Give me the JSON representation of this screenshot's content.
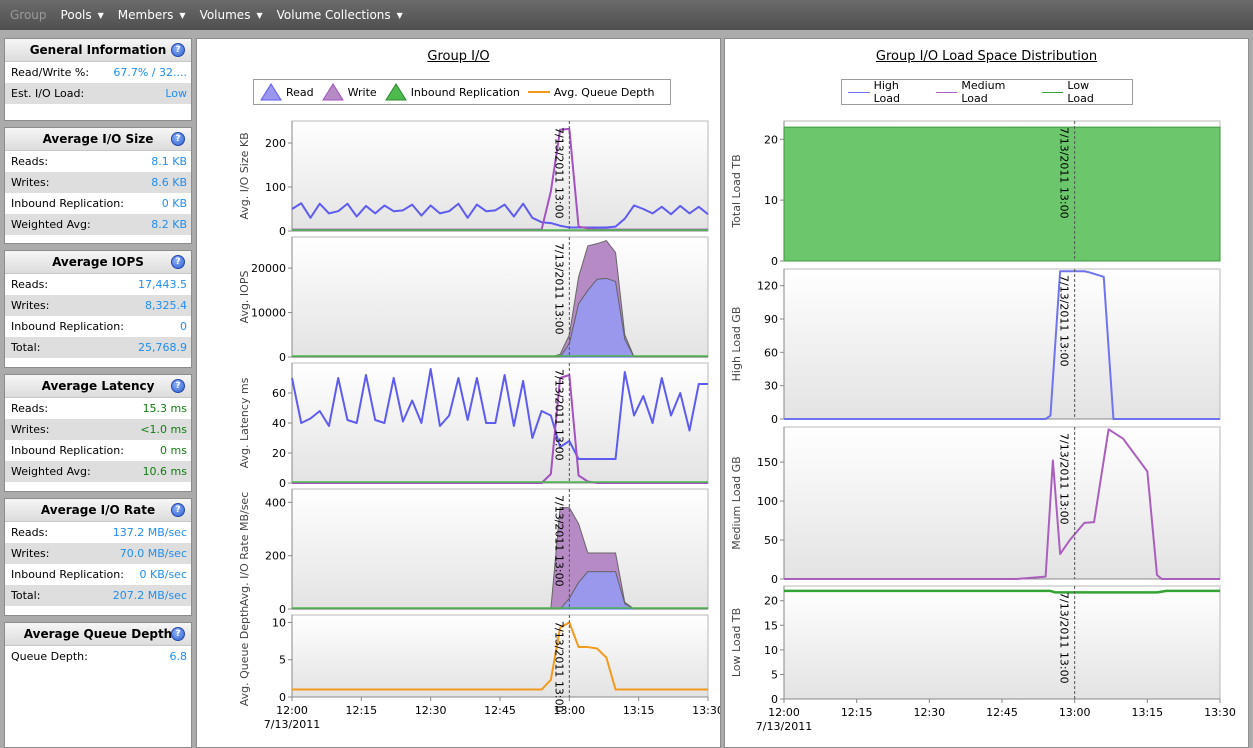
{
  "menu": [
    {
      "label": "Group",
      "disabled": true,
      "caret": false
    },
    {
      "label": "Pools",
      "disabled": false,
      "caret": true
    },
    {
      "label": "Members",
      "disabled": false,
      "caret": true
    },
    {
      "label": "Volumes",
      "disabled": false,
      "caret": true
    },
    {
      "label": "Volume Collections",
      "disabled": false,
      "caret": true
    }
  ],
  "sections": [
    {
      "title": "General Information",
      "rows": [
        {
          "label": "Read/Write %:",
          "value": "67.7% / 32....",
          "color": "blue"
        },
        {
          "label": "Est. I/O Load:",
          "value": "Low",
          "color": "blue"
        }
      ]
    },
    {
      "title": "Average I/O Size",
      "rows": [
        {
          "label": "Reads:",
          "value": "8.1 KB",
          "color": "blue"
        },
        {
          "label": "Writes:",
          "value": "8.6 KB",
          "color": "blue"
        },
        {
          "label": "Inbound Replication:",
          "value": "0 KB",
          "color": "blue"
        },
        {
          "label": "Weighted Avg:",
          "value": "8.2 KB",
          "color": "blue"
        }
      ]
    },
    {
      "title": "Average IOPS",
      "rows": [
        {
          "label": "Reads:",
          "value": "17,443.5",
          "color": "blue"
        },
        {
          "label": "Writes:",
          "value": "8,325.4",
          "color": "blue"
        },
        {
          "label": "Inbound Replication:",
          "value": "0",
          "color": "blue"
        },
        {
          "label": "Total:",
          "value": "25,768.9",
          "color": "blue"
        }
      ]
    },
    {
      "title": "Average Latency",
      "rows": [
        {
          "label": "Reads:",
          "value": "15.3 ms",
          "color": "green"
        },
        {
          "label": "Writes:",
          "value": "<1.0 ms",
          "color": "green"
        },
        {
          "label": "Inbound Replication:",
          "value": "0 ms",
          "color": "green"
        },
        {
          "label": "Weighted Avg:",
          "value": "10.6 ms",
          "color": "green"
        }
      ]
    },
    {
      "title": "Average I/O Rate",
      "rows": [
        {
          "label": "Reads:",
          "value": "137.2 MB/sec",
          "color": "blue"
        },
        {
          "label": "Writes:",
          "value": "70.0 MB/sec",
          "color": "blue"
        },
        {
          "label": "Inbound Replication:",
          "value": "0 KB/sec",
          "color": "blue"
        },
        {
          "label": "Total:",
          "value": "207.2 MB/sec",
          "color": "blue"
        }
      ]
    },
    {
      "title": "Average Queue Depth",
      "rows": [
        {
          "label": "Queue Depth:",
          "value": "6.8",
          "color": "blue"
        }
      ]
    }
  ],
  "colors": {
    "read": "#9a98ec",
    "read_line": "#5e5cf0",
    "write": "#b68ac4",
    "write_line": "#a352c0",
    "inbound": "#4cba4c",
    "queue": "#f39a1e",
    "high": "#7073ee",
    "medium": "#aa5fbe",
    "low": "#33a333",
    "total_fill": "#6cc66c"
  },
  "chart_data": [
    {
      "type": "area",
      "title": "Group I/O",
      "legend": [
        "Read",
        "Write",
        "Inbound Replication",
        "Avg. Queue Depth"
      ],
      "marker_label": "7/13/2011 13:00",
      "x_ticks": [
        "12:00",
        "12:15",
        "12:30",
        "12:45",
        "13:00",
        "13:15",
        "13:30"
      ],
      "x_date_label": "7/13/2011",
      "x_minutes": [
        0,
        2,
        4,
        6,
        8,
        10,
        12,
        14,
        16,
        18,
        20,
        22,
        24,
        26,
        28,
        30,
        32,
        34,
        36,
        38,
        40,
        42,
        44,
        46,
        48,
        50,
        52,
        54,
        56,
        58,
        60,
        62,
        64,
        66,
        68,
        70,
        72,
        74,
        76,
        78,
        80,
        82,
        84,
        86,
        88,
        90
      ],
      "panels": [
        {
          "ylabel": "Avg. I/O Size KB",
          "ylim": [
            0,
            250
          ],
          "yticks": [
            0,
            100,
            200
          ],
          "series": [
            {
              "name": "Read",
              "kind": "line",
              "values": [
                50,
                63,
                30,
                62,
                40,
                45,
                62,
                33,
                57,
                40,
                58,
                45,
                47,
                60,
                35,
                58,
                40,
                45,
                62,
                30,
                60,
                45,
                47,
                60,
                33,
                62,
                30,
                20,
                18,
                12,
                8,
                8,
                8,
                8,
                8,
                10,
                28,
                58,
                50,
                40,
                55,
                38,
                57,
                40,
                55,
                38
              ]
            },
            {
              "name": "Write",
              "kind": "line",
              "values": [
                3,
                3,
                3,
                3,
                3,
                3,
                3,
                3,
                3,
                3,
                3,
                3,
                3,
                3,
                3,
                3,
                3,
                3,
                3,
                3,
                3,
                3,
                3,
                3,
                3,
                3,
                3,
                3,
                90,
                230,
                232,
                10,
                6,
                3,
                3,
                3,
                3,
                3,
                3,
                3,
                3,
                3,
                3,
                3,
                3,
                3
              ]
            }
          ]
        },
        {
          "ylabel": "Avg. IOPS",
          "ylim": [
            0,
            27000
          ],
          "yticks": [
            0,
            10000,
            20000
          ],
          "series": [
            {
              "name": "Read",
              "kind": "area",
              "values": [
                0,
                0,
                0,
                0,
                0,
                0,
                0,
                0,
                0,
                0,
                0,
                0,
                0,
                0,
                0,
                0,
                0,
                0,
                0,
                0,
                0,
                0,
                0,
                0,
                0,
                0,
                0,
                0,
                0,
                0,
                3000,
                12000,
                15000,
                17500,
                17700,
                17000,
                4000,
                0,
                0,
                0,
                0,
                0,
                0,
                0,
                0,
                0
              ]
            },
            {
              "name": "Write",
              "kind": "area_stack",
              "values": [
                0,
                0,
                0,
                0,
                0,
                0,
                0,
                0,
                0,
                0,
                0,
                0,
                0,
                0,
                0,
                0,
                0,
                0,
                0,
                0,
                0,
                0,
                0,
                0,
                0,
                0,
                0,
                0,
                0,
                600,
                2000,
                6000,
                10000,
                8000,
                8500,
                6500,
                1000,
                0,
                0,
                0,
                0,
                0,
                0,
                0,
                0,
                0
              ]
            }
          ]
        },
        {
          "ylabel": "Avg. Latency ms",
          "ylim": [
            0,
            80
          ],
          "yticks": [
            0,
            20,
            40,
            60
          ],
          "series": [
            {
              "name": "Read",
              "kind": "line",
              "values": [
                70,
                40,
                43,
                48,
                38,
                70,
                42,
                40,
                72,
                42,
                40,
                70,
                41,
                55,
                40,
                76,
                38,
                45,
                70,
                42,
                70,
                40,
                40,
                72,
                38,
                68,
                30,
                48,
                45,
                24,
                28,
                16,
                16,
                16,
                16,
                16,
                74,
                45,
                58,
                40,
                70,
                45,
                60,
                35,
                66,
                66
              ]
            },
            {
              "name": "Write",
              "kind": "line",
              "values": [
                0,
                0,
                0,
                0,
                0,
                0,
                0,
                0,
                0,
                0,
                0,
                0,
                0,
                0,
                0,
                0,
                0,
                0,
                0,
                0,
                0,
                0,
                0,
                0,
                0,
                0,
                0,
                0,
                6,
                70,
                72,
                5,
                1,
                0,
                0,
                0,
                0,
                0,
                0,
                0,
                0,
                0,
                0,
                0,
                0,
                0
              ]
            }
          ]
        },
        {
          "ylabel": "Avg. I/O Rate MB/sec",
          "ylim": [
            0,
            450
          ],
          "yticks": [
            0,
            200,
            400
          ],
          "series": [
            {
              "name": "Read",
              "kind": "area",
              "values": [
                0,
                0,
                0,
                0,
                0,
                0,
                0,
                0,
                0,
                0,
                0,
                0,
                0,
                0,
                0,
                0,
                0,
                0,
                0,
                0,
                0,
                0,
                0,
                0,
                0,
                0,
                0,
                0,
                0,
                0,
                40,
                100,
                140,
                140,
                140,
                140,
                20,
                0,
                0,
                0,
                0,
                0,
                0,
                0,
                0,
                0
              ]
            },
            {
              "name": "Write",
              "kind": "area_stack",
              "values": [
                0,
                0,
                0,
                0,
                0,
                0,
                0,
                0,
                0,
                0,
                0,
                0,
                0,
                0,
                0,
                0,
                0,
                0,
                0,
                0,
                0,
                0,
                0,
                0,
                0,
                0,
                0,
                0,
                0,
                380,
                340,
                220,
                70,
                70,
                70,
                70,
                5,
                0,
                0,
                0,
                0,
                0,
                0,
                0,
                0,
                0
              ]
            }
          ]
        },
        {
          "ylabel": "Avg. Queue Depth",
          "ylim": [
            0,
            11
          ],
          "yticks": [
            0,
            5,
            10
          ],
          "series": [
            {
              "name": "Avg. Queue Depth",
              "kind": "line",
              "values": [
                1,
                1,
                1,
                1,
                1,
                1,
                1,
                1,
                1,
                1,
                1,
                1,
                1,
                1,
                1,
                1,
                1,
                1,
                1,
                1,
                1,
                1,
                1,
                1,
                1,
                1,
                1,
                1,
                2.3,
                9.3,
                10,
                6.7,
                6.7,
                6.5,
                5.3,
                1,
                1,
                1,
                1,
                1,
                1,
                1,
                1,
                1,
                1,
                1
              ]
            }
          ]
        }
      ]
    },
    {
      "type": "line",
      "title": "Group I/O Load Space Distribution",
      "legend": [
        "High Load",
        "Medium Load",
        "Low Load"
      ],
      "marker_label": "7/13/2011 13:00",
      "x_ticks": [
        "12:00",
        "12:15",
        "12:30",
        "12:45",
        "13:00",
        "13:15",
        "13:30"
      ],
      "x_date_label": "7/13/2011",
      "panels": [
        {
          "ylabel": "Total Load TB",
          "ylim": [
            0,
            23
          ],
          "yticks": [
            0,
            10,
            20
          ],
          "series": [
            {
              "name": "Total",
              "kind": "area_const",
              "values_xy": [
                [
                  0,
                  22
                ],
                [
                  90,
                  22
                ]
              ]
            }
          ]
        },
        {
          "ylabel": "High Load GB",
          "ylim": [
            0,
            135
          ],
          "yticks": [
            0,
            30,
            60,
            90,
            120
          ],
          "series": [
            {
              "name": "High Load",
              "kind": "line",
              "values_xy": [
                [
                  0,
                  0
                ],
                [
                  54,
                  0
                ],
                [
                  55,
                  3
                ],
                [
                  57,
                  133
                ],
                [
                  59,
                  133
                ],
                [
                  62,
                  133
                ],
                [
                  63,
                  132
                ],
                [
                  66,
                  128
                ],
                [
                  68,
                  0
                ],
                [
                  90,
                  0
                ]
              ]
            }
          ]
        },
        {
          "ylabel": "Medium Load GB",
          "ylim": [
            0,
            195
          ],
          "yticks": [
            0,
            50,
            100,
            150
          ],
          "series": [
            {
              "name": "Medium Load",
              "kind": "line",
              "values_xy": [
                [
                  0,
                  0
                ],
                [
                  48,
                  0
                ],
                [
                  54,
                  3
                ],
                [
                  55.5,
                  152
                ],
                [
                  57,
                  32
                ],
                [
                  59,
                  50
                ],
                [
                  62,
                  72
                ],
                [
                  64,
                  73
                ],
                [
                  67,
                  192
                ],
                [
                  70,
                  180
                ],
                [
                  75,
                  138
                ],
                [
                  77,
                  5
                ],
                [
                  78,
                  0
                ],
                [
                  90,
                  0
                ]
              ]
            }
          ]
        },
        {
          "ylabel": "Low Load TB",
          "ylim": [
            0,
            23
          ],
          "yticks": [
            0,
            5,
            10,
            15,
            20
          ],
          "series": [
            {
              "name": "Low Load",
              "kind": "line",
              "values_xy": [
                [
                  0,
                  22
                ],
                [
                  55,
                  22
                ],
                [
                  56,
                  21.7
                ],
                [
                  77,
                  21.7
                ],
                [
                  79,
                  22
                ],
                [
                  90,
                  22
                ]
              ]
            }
          ]
        }
      ]
    }
  ]
}
